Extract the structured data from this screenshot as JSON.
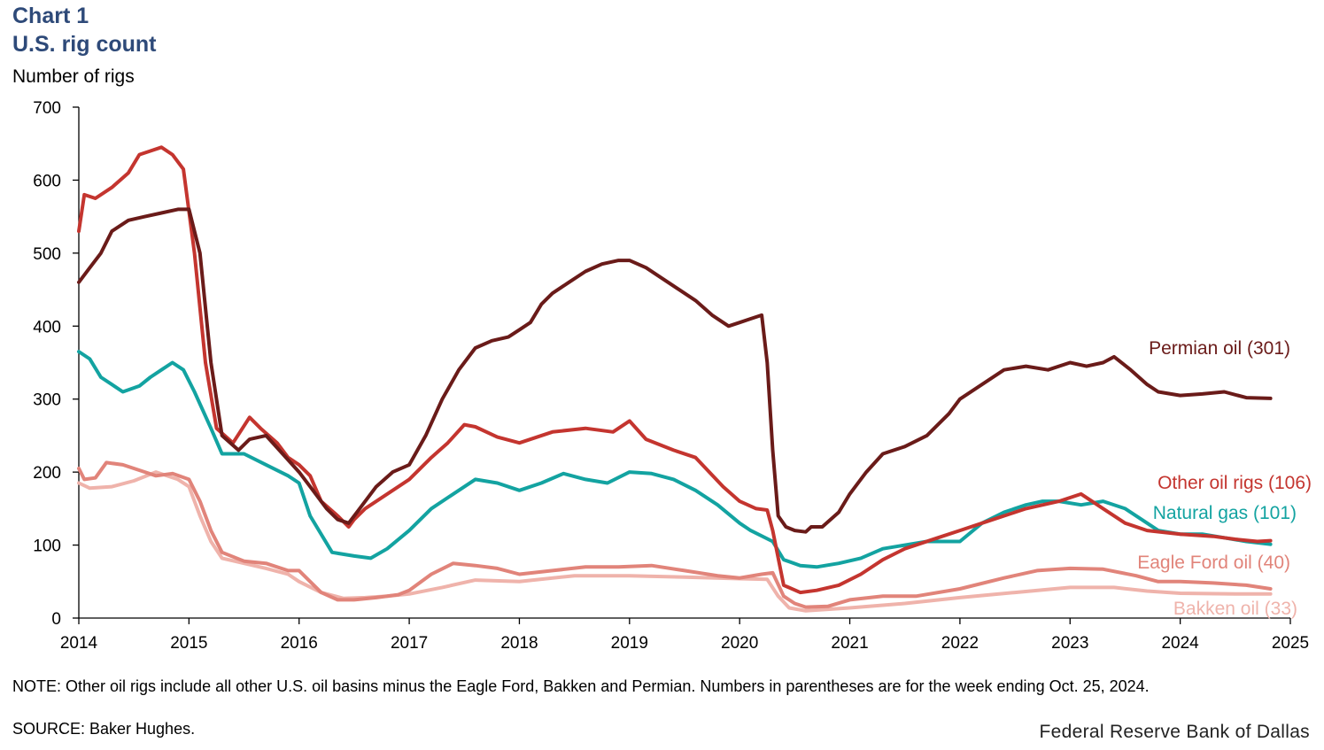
{
  "header": {
    "chart_number": "Chart 1",
    "title": "U.S. rig count",
    "ylabel": "Number of rigs"
  },
  "footer": {
    "note": "NOTE: Other oil rigs include all other U.S. oil basins minus the Eagle Ford, Bakken and Permian. Numbers in parentheses are for the week ending Oct. 25, 2024.",
    "source": "SOURCE: Baker Hughes.",
    "brand": "Federal Reserve Bank of Dallas"
  },
  "chart_data": {
    "type": "line",
    "title": "U.S. rig count",
    "xlabel": "",
    "ylabel": "Number of rigs",
    "xlim": [
      2014,
      2025
    ],
    "ylim": [
      0,
      700
    ],
    "xticks": [
      2014,
      2015,
      2016,
      2017,
      2018,
      2019,
      2020,
      2021,
      2022,
      2023,
      2024,
      2025
    ],
    "yticks": [
      0,
      100,
      200,
      300,
      400,
      500,
      600,
      700
    ],
    "grid": false,
    "series": [
      {
        "name": "Bakken oil",
        "label": "Bakken oil (33)",
        "color": "#efb3ab",
        "x": [
          2014,
          2014.1,
          2014.3,
          2014.5,
          2014.7,
          2014.9,
          2015,
          2015.1,
          2015.2,
          2015.3,
          2015.5,
          2015.7,
          2015.9,
          2016,
          2016.2,
          2016.4,
          2016.6,
          2016.8,
          2017,
          2017.3,
          2017.6,
          2018,
          2018.5,
          2019,
          2019.5,
          2020,
          2020.25,
          2020.35,
          2020.45,
          2020.6,
          2020.8,
          2021,
          2021.5,
          2022,
          2022.5,
          2023,
          2023.4,
          2023.7,
          2024,
          2024.5,
          2024.82
        ],
        "y": [
          185,
          178,
          180,
          188,
          200,
          190,
          180,
          140,
          105,
          82,
          75,
          68,
          60,
          50,
          35,
          27,
          28,
          30,
          33,
          42,
          52,
          50,
          58,
          58,
          56,
          54,
          53,
          30,
          14,
          10,
          12,
          14,
          20,
          28,
          35,
          42,
          42,
          37,
          34,
          33,
          33
        ]
      },
      {
        "name": "Eagle Ford oil",
        "label": "Eagle Ford oil (40)",
        "color": "#e1847a",
        "x": [
          2014,
          2014.05,
          2014.15,
          2014.25,
          2014.4,
          2014.6,
          2014.7,
          2014.85,
          2015,
          2015.1,
          2015.2,
          2015.3,
          2015.5,
          2015.7,
          2015.9,
          2016,
          2016.1,
          2016.2,
          2016.35,
          2016.5,
          2016.7,
          2016.9,
          2017,
          2017.2,
          2017.4,
          2017.6,
          2017.8,
          2018,
          2018.3,
          2018.6,
          2018.9,
          2019.2,
          2019.5,
          2019.8,
          2020,
          2020.2,
          2020.3,
          2020.4,
          2020.5,
          2020.6,
          2020.8,
          2021,
          2021.3,
          2021.6,
          2022,
          2022.4,
          2022.7,
          2023,
          2023.3,
          2023.6,
          2023.8,
          2024,
          2024.3,
          2024.6,
          2024.82
        ],
        "y": [
          205,
          190,
          192,
          213,
          210,
          200,
          195,
          198,
          190,
          160,
          120,
          90,
          78,
          75,
          65,
          65,
          50,
          35,
          25,
          25,
          28,
          32,
          38,
          60,
          75,
          72,
          68,
          60,
          65,
          70,
          70,
          72,
          65,
          58,
          55,
          60,
          62,
          30,
          20,
          15,
          16,
          25,
          30,
          30,
          40,
          55,
          65,
          68,
          67,
          58,
          50,
          50,
          48,
          45,
          40
        ]
      },
      {
        "name": "Natural gas",
        "label": "Natural gas (101)",
        "color": "#13a3a1",
        "x": [
          2014,
          2014.1,
          2014.2,
          2014.3,
          2014.4,
          2014.55,
          2014.65,
          2014.75,
          2014.85,
          2014.95,
          2015.05,
          2015.2,
          2015.3,
          2015.5,
          2015.7,
          2015.9,
          2016,
          2016.1,
          2016.3,
          2016.5,
          2016.65,
          2016.8,
          2017,
          2017.2,
          2017.4,
          2017.6,
          2017.8,
          2018,
          2018.2,
          2018.4,
          2018.6,
          2018.8,
          2019,
          2019.2,
          2019.4,
          2019.6,
          2019.8,
          2020,
          2020.1,
          2020.3,
          2020.4,
          2020.55,
          2020.7,
          2020.9,
          2021.1,
          2021.3,
          2021.5,
          2021.7,
          2022,
          2022.2,
          2022.4,
          2022.6,
          2022.75,
          2022.9,
          2023.1,
          2023.3,
          2023.5,
          2023.65,
          2023.8,
          2024,
          2024.2,
          2024.4,
          2024.6,
          2024.82
        ],
        "y": [
          365,
          355,
          330,
          320,
          310,
          318,
          330,
          340,
          350,
          340,
          310,
          260,
          225,
          225,
          210,
          195,
          185,
          140,
          90,
          85,
          82,
          95,
          120,
          150,
          170,
          190,
          185,
          175,
          185,
          198,
          190,
          185,
          200,
          198,
          190,
          175,
          155,
          130,
          120,
          105,
          80,
          72,
          70,
          75,
          82,
          95,
          100,
          105,
          105,
          130,
          145,
          155,
          160,
          160,
          155,
          160,
          150,
          135,
          120,
          115,
          115,
          110,
          105,
          101
        ]
      },
      {
        "name": "Other oil rigs",
        "label": "Other oil rigs (106)",
        "color": "#c4352f",
        "x": [
          2014,
          2014.05,
          2014.15,
          2014.3,
          2014.45,
          2014.55,
          2014.65,
          2014.75,
          2014.85,
          2014.95,
          2015.05,
          2015.15,
          2015.25,
          2015.4,
          2015.55,
          2015.65,
          2015.8,
          2015.9,
          2016,
          2016.1,
          2016.2,
          2016.35,
          2016.45,
          2016.5,
          2016.6,
          2016.8,
          2017,
          2017.2,
          2017.35,
          2017.5,
          2017.6,
          2017.8,
          2018,
          2018.3,
          2018.6,
          2018.85,
          2019,
          2019.15,
          2019.4,
          2019.6,
          2019.85,
          2020,
          2020.15,
          2020.25,
          2020.3,
          2020.4,
          2020.55,
          2020.7,
          2020.9,
          2021.1,
          2021.3,
          2021.5,
          2021.8,
          2022,
          2022.3,
          2022.6,
          2022.9,
          2023.1,
          2023.3,
          2023.5,
          2023.7,
          2024,
          2024.3,
          2024.5,
          2024.7,
          2024.82
        ],
        "y": [
          530,
          580,
          575,
          590,
          610,
          635,
          640,
          645,
          635,
          615,
          500,
          350,
          260,
          240,
          275,
          260,
          240,
          220,
          210,
          195,
          160,
          140,
          125,
          135,
          150,
          170,
          190,
          220,
          240,
          265,
          262,
          248,
          240,
          255,
          260,
          255,
          270,
          245,
          230,
          220,
          180,
          160,
          150,
          148,
          120,
          45,
          35,
          38,
          45,
          60,
          80,
          95,
          110,
          120,
          135,
          150,
          160,
          170,
          150,
          130,
          120,
          115,
          112,
          108,
          105,
          106
        ]
      },
      {
        "name": "Permian oil",
        "label": "Permian oil (301)",
        "color": "#6a1b19",
        "x": [
          2014,
          2014.1,
          2014.2,
          2014.3,
          2014.45,
          2014.6,
          2014.75,
          2014.9,
          2015,
          2015.1,
          2015.2,
          2015.3,
          2015.45,
          2015.55,
          2015.7,
          2015.85,
          2016,
          2016.1,
          2016.25,
          2016.35,
          2016.45,
          2016.55,
          2016.7,
          2016.85,
          2017,
          2017.15,
          2017.3,
          2017.45,
          2017.6,
          2017.75,
          2017.9,
          2018,
          2018.1,
          2018.2,
          2018.3,
          2018.45,
          2018.6,
          2018.75,
          2018.9,
          2019,
          2019.15,
          2019.3,
          2019.45,
          2019.6,
          2019.75,
          2019.9,
          2020,
          2020.1,
          2020.2,
          2020.25,
          2020.3,
          2020.35,
          2020.42,
          2020.5,
          2020.6,
          2020.65,
          2020.75,
          2020.9,
          2021,
          2021.15,
          2021.3,
          2021.5,
          2021.7,
          2021.9,
          2022,
          2022.2,
          2022.4,
          2022.6,
          2022.8,
          2023,
          2023.15,
          2023.3,
          2023.4,
          2023.55,
          2023.7,
          2023.8,
          2024,
          2024.2,
          2024.4,
          2024.6,
          2024.82
        ],
        "y": [
          460,
          480,
          500,
          530,
          545,
          550,
          555,
          560,
          560,
          500,
          350,
          250,
          230,
          245,
          250,
          225,
          200,
          180,
          150,
          135,
          130,
          150,
          180,
          200,
          210,
          250,
          300,
          340,
          370,
          380,
          385,
          395,
          405,
          430,
          445,
          460,
          475,
          485,
          490,
          490,
          480,
          465,
          450,
          435,
          415,
          400,
          405,
          410,
          415,
          350,
          230,
          140,
          125,
          120,
          118,
          125,
          125,
          145,
          170,
          200,
          225,
          235,
          250,
          280,
          300,
          320,
          340,
          345,
          340,
          350,
          345,
          350,
          358,
          340,
          320,
          310,
          305,
          307,
          310,
          302,
          301
        ]
      }
    ]
  }
}
